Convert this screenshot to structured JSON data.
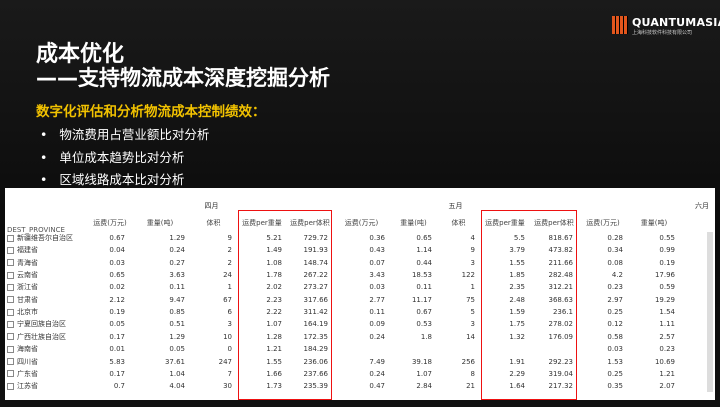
{
  "header": {
    "logo": "QUANTUMASIA",
    "logo_subtitle": "上海科技软件科技有限公司",
    "title": "成本优化",
    "subtitle": "——支持物流成本深度挖掘分析"
  },
  "body": {
    "lead": "数字化评估和分析物流成本控制绩效：",
    "bullets": [
      "物流费用占营业额比对分析",
      "单位成本趋势比对分析",
      "区域线路成本比对分析"
    ]
  },
  "table": {
    "row_header": "DEST_PROVINCE",
    "months": [
      "四月",
      "五月",
      "六月"
    ],
    "columns": [
      "运费(万元)",
      "重量(吨)",
      "体积",
      "运费per重量",
      "运费per体积",
      "运费(万元)",
      "重量(吨)",
      "体积",
      "运费per重量",
      "运费per体积",
      "运费(万元)",
      "重量(吨)"
    ],
    "rows": [
      {
        "name": "新疆维吾尔自治区",
        "values": [
          0.67,
          1.29,
          9,
          5.21,
          729.72,
          0.36,
          0.65,
          4,
          5.5,
          818.67,
          0.28,
          0.55
        ]
      },
      {
        "name": "福建省",
        "values": [
          0.04,
          0.24,
          2,
          1.49,
          191.93,
          0.43,
          1.14,
          9,
          3.79,
          473.82,
          0.34,
          0.99
        ]
      },
      {
        "name": "青海省",
        "values": [
          0.03,
          0.27,
          2,
          1.08,
          148.74,
          0.07,
          0.44,
          3,
          1.55,
          211.66,
          0.08,
          0.19
        ]
      },
      {
        "name": "云南省",
        "values": [
          0.65,
          3.63,
          24,
          1.78,
          267.22,
          3.43,
          18.53,
          122,
          1.85,
          282.48,
          4.2,
          17.96
        ]
      },
      {
        "name": "浙江省",
        "values": [
          0.02,
          0.11,
          1,
          2.02,
          273.27,
          0.03,
          0.11,
          1,
          2.35,
          312.21,
          0.23,
          0.59
        ]
      },
      {
        "name": "甘肃省",
        "values": [
          2.12,
          9.47,
          67,
          2.23,
          317.66,
          2.77,
          11.17,
          75,
          2.48,
          368.63,
          2.97,
          19.29
        ]
      },
      {
        "name": "北京市",
        "values": [
          0.19,
          0.85,
          6,
          2.22,
          311.42,
          0.11,
          0.67,
          5,
          1.59,
          236.1,
          0.25,
          1.54
        ]
      },
      {
        "name": "宁夏回族自治区",
        "values": [
          0.05,
          0.51,
          3,
          1.07,
          164.19,
          0.09,
          0.53,
          3,
          1.75,
          278.02,
          0.12,
          1.11
        ]
      },
      {
        "name": "广西壮族自治区",
        "values": [
          0.17,
          1.29,
          10,
          1.28,
          172.35,
          0.24,
          1.8,
          14,
          1.32,
          176.09,
          0.58,
          2.57
        ]
      },
      {
        "name": "海南省",
        "values": [
          0.01,
          0.05,
          0,
          1.21,
          184.29,
          null,
          null,
          null,
          null,
          null,
          0.03,
          0.23
        ]
      },
      {
        "name": "四川省",
        "values": [
          5.83,
          37.61,
          247,
          1.55,
          236.06,
          7.49,
          39.18,
          256,
          1.91,
          292.23,
          1.53,
          10.69
        ]
      },
      {
        "name": "广东省",
        "values": [
          0.17,
          1.04,
          7,
          1.66,
          237.66,
          0.24,
          1.07,
          8,
          2.29,
          319.04,
          0.25,
          1.21
        ]
      },
      {
        "name": "江苏省",
        "values": [
          0.7,
          4.04,
          30,
          1.73,
          235.39,
          0.47,
          2.84,
          21,
          1.64,
          217.32,
          0.35,
          2.07
        ]
      }
    ]
  }
}
